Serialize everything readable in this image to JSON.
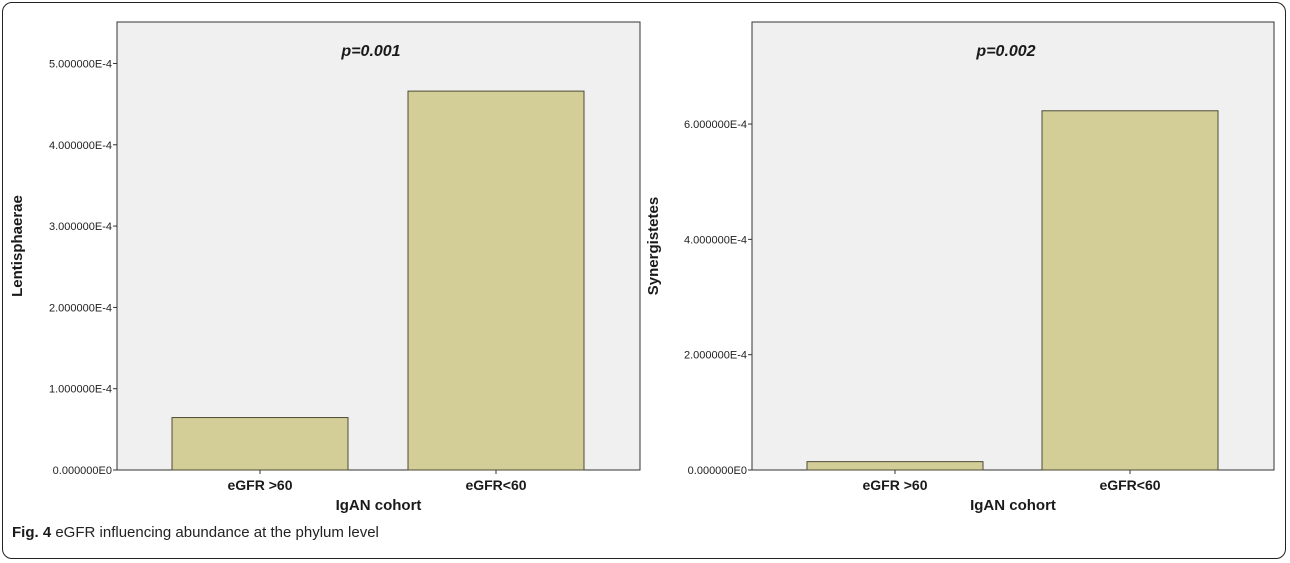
{
  "figure": {
    "caption_label": "Fig. 4",
    "caption_text": "eGFR influencing abundance at the phylum level"
  },
  "colors": {
    "plot_bg": "#f0f0f0",
    "bar_fill": "#d3ce97",
    "bar_stroke": "#4d4a34",
    "axis": "#333333"
  },
  "chart_data": [
    {
      "type": "bar",
      "categories": [
        "eGFR >60",
        "eGFR<60"
      ],
      "values": [
        6.45e-05,
        0.000466
      ],
      "xlabel": "IgAN cohort",
      "ylabel": "Lentisphaerae",
      "annotation": "p=0.001",
      "ylim": [
        0,
        0.000551
      ],
      "yticks": [
        0,
        0.0001,
        0.0002,
        0.0003,
        0.0004,
        0.0005
      ],
      "ytick_labels": [
        "0.000000E0",
        "1.000000E-4",
        "2.000000E-4",
        "3.000000E-4",
        "4.000000E-4",
        "5.000000E-4"
      ],
      "grid": false
    },
    {
      "type": "bar",
      "categories": [
        "eGFR >60",
        "eGFR<60"
      ],
      "values": [
        1.45e-05,
        0.000623
      ],
      "xlabel": "IgAN cohort",
      "ylabel": "Synergistetes",
      "annotation": "p=0.002",
      "ylim": [
        0,
        0.000777
      ],
      "yticks": [
        0,
        0.0002,
        0.0004,
        0.0006
      ],
      "ytick_labels": [
        "0.000000E0",
        "2.000000E-4",
        "4.000000E-4",
        "6.000000E-4"
      ],
      "grid": false
    }
  ]
}
